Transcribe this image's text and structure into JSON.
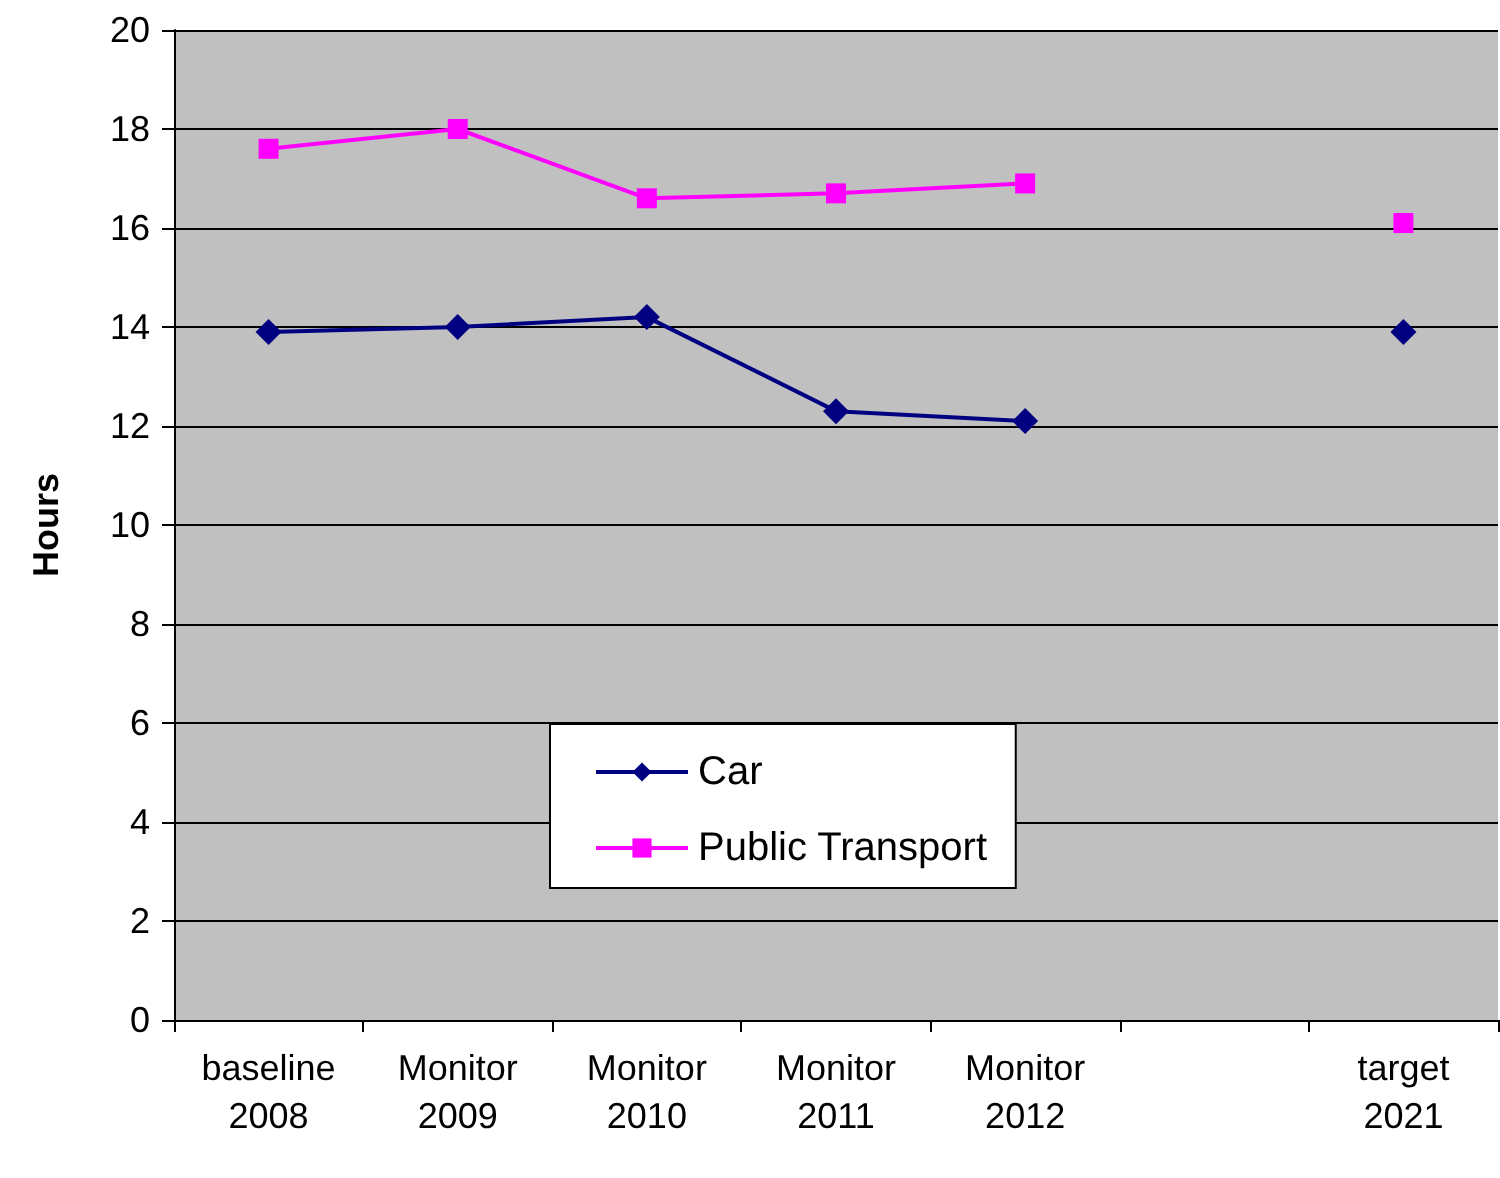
{
  "chart_data": {
    "type": "line",
    "ylabel": "Hours",
    "categories": [
      "baseline 2008",
      "Monitor 2009",
      "Monitor 2010",
      "Monitor 2011",
      "Monitor 2012",
      null,
      "target 2021"
    ],
    "series": [
      {
        "name": "Car",
        "color": "#000080",
        "marker": "diamond",
        "values": [
          13.9,
          14.0,
          14.2,
          12.3,
          12.1,
          null,
          13.9
        ]
      },
      {
        "name": "Public Transport",
        "color": "#ff00ff",
        "marker": "square",
        "values": [
          17.6,
          18.0,
          16.6,
          16.7,
          16.9,
          null,
          16.1
        ]
      }
    ],
    "ylim": [
      0,
      20
    ],
    "yticks": [
      0,
      2,
      4,
      6,
      8,
      10,
      12,
      14,
      16,
      18,
      20
    ],
    "grid": "y",
    "legend": "bottom"
  }
}
